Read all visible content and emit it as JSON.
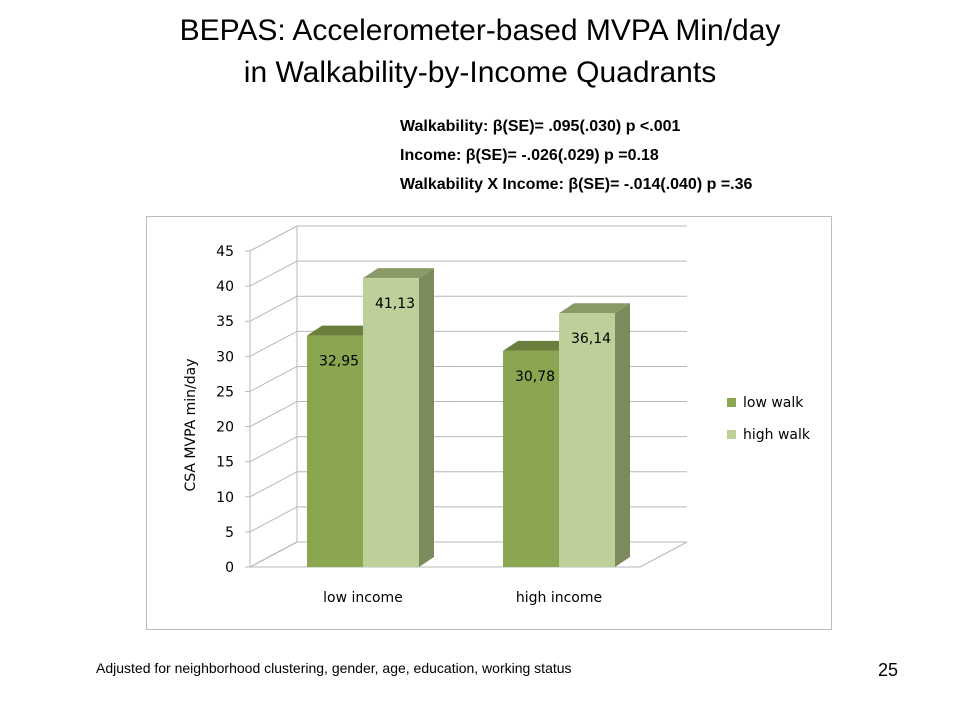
{
  "slide": {
    "title_line1": "BEPAS: Accelerometer-based  MVPA Min/day",
    "title_line2": "in Walkability-by-Income  Quadrants",
    "stats": [
      "Walkability:  β(SE)= .095(.030) p <.001",
      "Income: β(SE)= -.026(.029) p =0.18",
      "Walkability X Income: β(SE)= -.014(.040) p =.36"
    ],
    "footer": "Adjusted for neighborhood clustering, gender, age, education, working status",
    "page_number": "25"
  },
  "chart_data": {
    "type": "bar",
    "categories": [
      "low income",
      "high income"
    ],
    "series": [
      {
        "name": "low walk",
        "values": [
          32.95,
          30.78
        ],
        "labels": [
          "32,95",
          "30,78"
        ],
        "color": "#8ba651",
        "side_color": "#6e8640",
        "top_color": "#6b7f3d"
      },
      {
        "name": "high walk",
        "values": [
          41.13,
          36.14
        ],
        "labels": [
          "41,13",
          "36,14"
        ],
        "color": "#bdd09a",
        "side_color": "#7d8a5e",
        "top_color": "#8a9a66"
      }
    ],
    "ylabel": "CSA MVPA min/day",
    "ylim": [
      0,
      45
    ],
    "yticks": [
      "0",
      "5",
      "10",
      "15",
      "20",
      "25",
      "30",
      "35",
      "40",
      "45"
    ],
    "grid": true,
    "legend": "right",
    "three_d": true
  }
}
